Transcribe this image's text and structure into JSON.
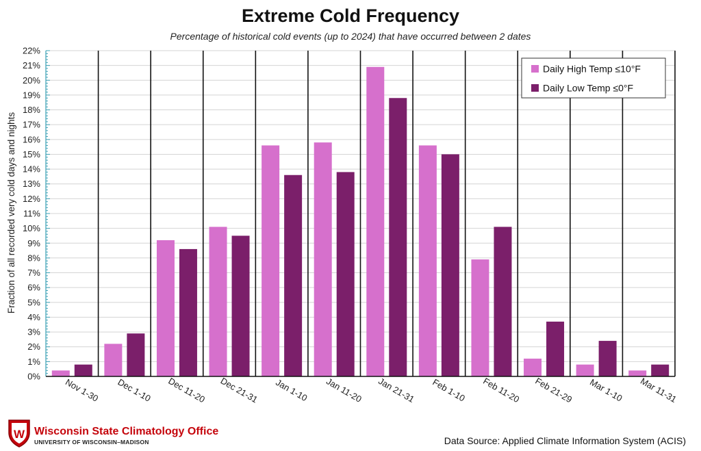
{
  "chart_data": {
    "type": "bar",
    "title": "Extreme Cold Frequency",
    "subtitle": "Percentage of historical cold events (up to 2024) that have occurred between 2 dates",
    "xlabel": "",
    "ylabel": "Fraction of all recorded very cold days and nights",
    "ylim": [
      0,
      22
    ],
    "yticks": [
      "0%",
      "1%",
      "2%",
      "3%",
      "4%",
      "5%",
      "6%",
      "7%",
      "8%",
      "9%",
      "10%",
      "11%",
      "12%",
      "13%",
      "14%",
      "15%",
      "16%",
      "17%",
      "18%",
      "19%",
      "20%",
      "21%",
      "22%"
    ],
    "grid": true,
    "legend_position": "top-right",
    "categories": [
      "Nov 1-30",
      "Dec 1-10",
      "Dec 11-20",
      "Dec 21-31",
      "Jan 1-10",
      "Jan 11-20",
      "Jan 21-31",
      "Feb 1-10",
      "Feb 11-20",
      "Feb 21-29",
      "Mar 1-10",
      "Mar 11-31"
    ],
    "series": [
      {
        "name": "Daily High Temp ≤10°F",
        "color": "#d670cc",
        "values": [
          0.4,
          2.2,
          9.2,
          10.1,
          15.6,
          15.8,
          20.9,
          15.6,
          7.9,
          1.2,
          0.8,
          0.4
        ]
      },
      {
        "name": "Daily Low Temp ≤0°F",
        "color": "#7b1f6a",
        "values": [
          0.8,
          2.9,
          8.6,
          9.5,
          13.6,
          13.8,
          18.8,
          15.0,
          10.1,
          3.7,
          2.4,
          0.8
        ]
      }
    ]
  },
  "footer": {
    "org_name": "Wisconsin State Climatology Office",
    "org_sub": "UNIVERSITY OF WISCONSIN–MADISON",
    "logo_letter": "W",
    "source": "Data Source: Applied Climate Information System (ACIS)"
  }
}
